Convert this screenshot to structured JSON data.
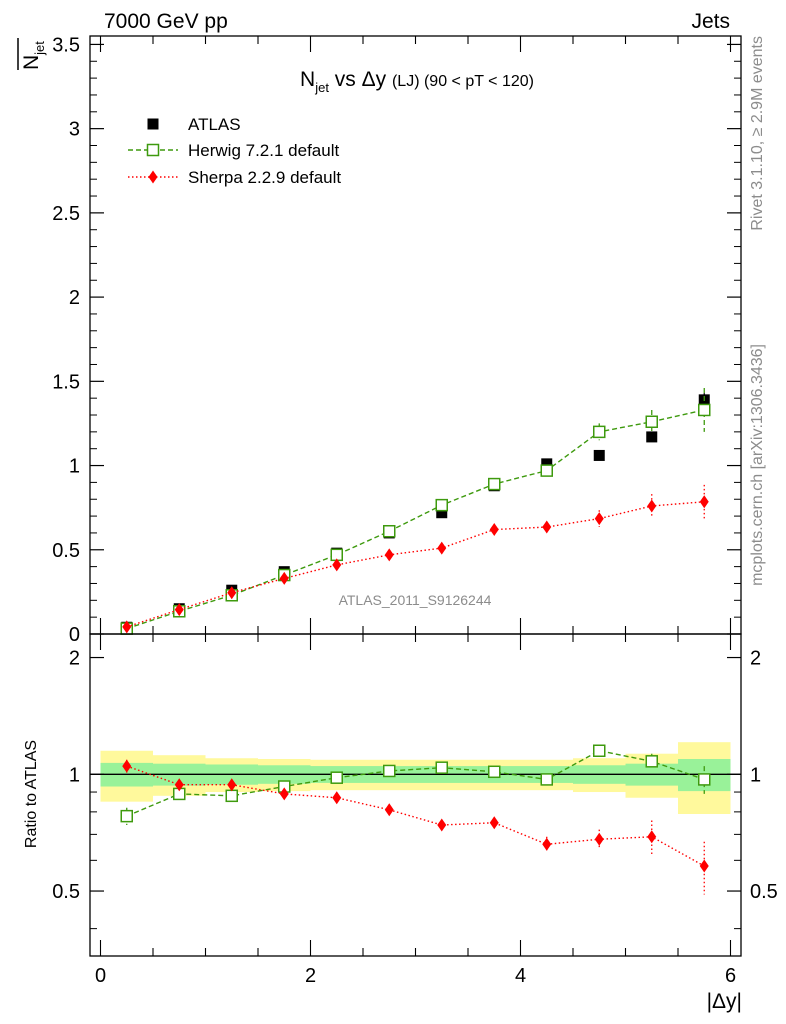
{
  "header": {
    "left_label": "7000 GeV pp",
    "right_label": "Jets"
  },
  "side_text": {
    "upper": "Rivet 3.1.10, ≥ 2.9M events",
    "lower": "mcplots.cern.ch [arXiv:1306.3436]"
  },
  "watermark": "ATLAS_2011_S9126244",
  "chart_data": [
    {
      "type": "scatter",
      "title": {
        "main": "N",
        "main_sub": "jet",
        "mid": " vs Δy ",
        "small": "(LJ) (90 < pT < 120)"
      },
      "ylabel": {
        "main": "N",
        "sub": "jet"
      },
      "xlim": [
        -0.1,
        6.1
      ],
      "ylim": [
        0,
        3.55
      ],
      "yticks": [
        {
          "v": 0,
          "label": "0"
        },
        {
          "v": 0.5,
          "label": "0.5"
        },
        {
          "v": 1,
          "label": "1"
        },
        {
          "v": 1.5,
          "label": "1.5"
        },
        {
          "v": 2,
          "label": "2"
        },
        {
          "v": 2.5,
          "label": "2.5"
        },
        {
          "v": 3,
          "label": "3"
        },
        {
          "v": 3.5,
          "label": "3.5"
        }
      ],
      "legend": {
        "placement": "top-left",
        "entries": [
          {
            "label": "ATLAS",
            "series": "atlas"
          },
          {
            "label": "Herwig 7.2.1 default",
            "series": "herwig"
          },
          {
            "label": "Sherpa 2.2.9 default",
            "series": "sherpa"
          }
        ]
      },
      "colors": {
        "atlas": "#000000",
        "herwig": "#3e9a0e",
        "sherpa": "#ff0000"
      },
      "x": [
        0.25,
        0.75,
        1.25,
        1.75,
        2.25,
        2.75,
        3.25,
        3.75,
        4.25,
        4.75,
        5.25,
        5.75
      ],
      "series": [
        {
          "name": "ATLAS",
          "key": "atlas",
          "values": [
            0.04,
            0.15,
            0.26,
            0.37,
            0.48,
            0.6,
            0.72,
            0.88,
            1.01,
            1.06,
            1.17,
            1.39
          ],
          "errors": [
            0.005,
            0.008,
            0.01,
            0.01,
            0.015,
            0.015,
            0.02,
            0.02,
            0.02,
            0.02,
            0.02,
            0.04
          ]
        },
        {
          "name": "Herwig 7.2.1 default",
          "key": "herwig",
          "values": [
            0.032,
            0.135,
            0.23,
            0.35,
            0.47,
            0.61,
            0.765,
            0.89,
            0.97,
            1.2,
            1.26,
            1.33
          ],
          "errors": [
            0.003,
            0.005,
            0.008,
            0.01,
            0.015,
            0.015,
            0.02,
            0.025,
            0.03,
            0.05,
            0.07,
            0.13
          ]
        },
        {
          "name": "Sherpa 2.2.9 default",
          "key": "sherpa",
          "values": [
            0.042,
            0.145,
            0.245,
            0.33,
            0.41,
            0.47,
            0.51,
            0.62,
            0.635,
            0.685,
            0.76,
            0.785
          ],
          "errors": [
            0.003,
            0.005,
            0.008,
            0.01,
            0.012,
            0.015,
            0.015,
            0.02,
            0.025,
            0.05,
            0.07,
            0.1
          ]
        }
      ]
    },
    {
      "type": "scatter",
      "ylabel": "Ratio to ATLAS",
      "xlabel": "|Δy|",
      "xlim": [
        -0.1,
        6.1
      ],
      "ylim": [
        0.34,
        2.3
      ],
      "xticks": [
        {
          "v": 0,
          "label": "0"
        },
        {
          "v": 2,
          "label": "2"
        },
        {
          "v": 4,
          "label": "4"
        },
        {
          "v": 6,
          "label": "6"
        }
      ],
      "yticks": [
        {
          "v": 0.5,
          "label": "0.5"
        },
        {
          "v": 1,
          "label": "1"
        },
        {
          "v": 2,
          "label": "2"
        }
      ],
      "reference_line": 1,
      "bands": {
        "edges": [
          0,
          0.5,
          1,
          1.5,
          2,
          2.5,
          3,
          3.5,
          4,
          4.5,
          5,
          5.5,
          6
        ],
        "inner_lo": [
          0.93,
          0.935,
          0.94,
          0.945,
          0.95,
          0.95,
          0.95,
          0.95,
          0.95,
          0.945,
          0.935,
          0.905
        ],
        "inner_hi": [
          1.07,
          1.065,
          1.06,
          1.055,
          1.05,
          1.05,
          1.05,
          1.05,
          1.05,
          1.055,
          1.065,
          1.095
        ],
        "outer_lo": [
          0.85,
          0.88,
          0.9,
          0.905,
          0.91,
          0.91,
          0.91,
          0.91,
          0.91,
          0.9,
          0.87,
          0.79
        ],
        "outer_hi": [
          1.15,
          1.12,
          1.1,
          1.095,
          1.09,
          1.09,
          1.09,
          1.09,
          1.09,
          1.1,
          1.13,
          1.21
        ],
        "inner_color": "#99f299",
        "outer_color": "#fff99c"
      },
      "x": [
        0.25,
        0.75,
        1.25,
        1.75,
        2.25,
        2.75,
        3.25,
        3.75,
        4.25,
        4.75,
        5.25,
        5.75
      ],
      "series": [
        {
          "name": "Herwig 7.2.1 default",
          "key": "herwig",
          "values": [
            0.78,
            0.89,
            0.88,
            0.93,
            0.98,
            1.02,
            1.04,
            1.015,
            0.97,
            1.15,
            1.08,
            0.97
          ],
          "errors": [
            0.04,
            0.02,
            0.015,
            0.01,
            0.01,
            0.01,
            0.01,
            0.01,
            0.015,
            0.03,
            0.05,
            0.08
          ]
        },
        {
          "name": "Sherpa 2.2.9 default",
          "key": "sherpa",
          "values": [
            1.05,
            0.94,
            0.94,
            0.89,
            0.87,
            0.81,
            0.74,
            0.75,
            0.66,
            0.68,
            0.69,
            0.58
          ],
          "errors": [
            0.04,
            0.02,
            0.015,
            0.01,
            0.01,
            0.01,
            0.015,
            0.02,
            0.03,
            0.04,
            0.07,
            0.09
          ]
        }
      ]
    }
  ]
}
